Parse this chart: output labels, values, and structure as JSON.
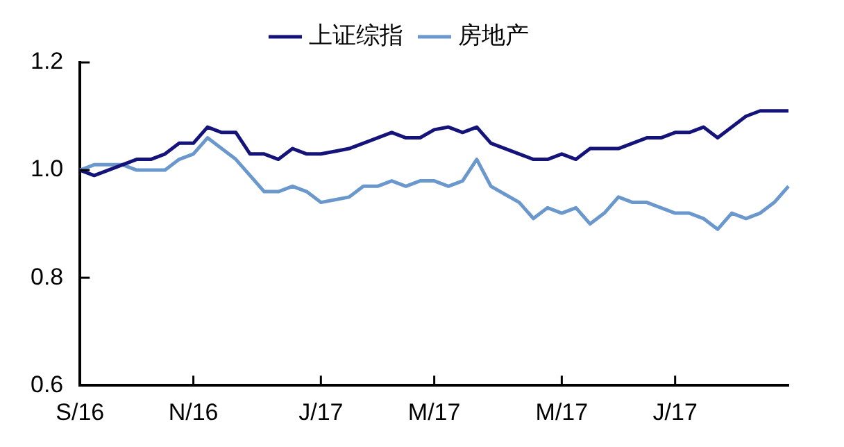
{
  "chart_data": {
    "type": "line",
    "categories": [
      "S/16",
      null,
      null,
      null,
      null,
      null,
      null,
      null,
      "N/16",
      null,
      null,
      null,
      null,
      null,
      null,
      null,
      null,
      "J/17",
      null,
      null,
      null,
      null,
      null,
      null,
      null,
      "M/17",
      null,
      null,
      null,
      null,
      null,
      null,
      null,
      null,
      "M/17",
      null,
      null,
      null,
      null,
      null,
      null,
      null,
      "J/17",
      null,
      null,
      null,
      null,
      null,
      null,
      null,
      null
    ],
    "series": [
      {
        "name": "上证综指",
        "color": "#14137a",
        "values": [
          1.0,
          0.99,
          1.0,
          1.01,
          1.02,
          1.02,
          1.03,
          1.05,
          1.05,
          1.08,
          1.07,
          1.07,
          1.03,
          1.03,
          1.02,
          1.04,
          1.03,
          1.03,
          1.035,
          1.04,
          1.05,
          1.06,
          1.07,
          1.06,
          1.06,
          1.075,
          1.08,
          1.07,
          1.08,
          1.05,
          1.04,
          1.03,
          1.02,
          1.02,
          1.03,
          1.02,
          1.04,
          1.04,
          1.04,
          1.05,
          1.06,
          1.06,
          1.07,
          1.07,
          1.08,
          1.06,
          1.08,
          1.1,
          1.11,
          1.11,
          1.11
        ]
      },
      {
        "name": "房地产",
        "color": "#6a98cc",
        "values": [
          1.0,
          1.01,
          1.01,
          1.01,
          1.0,
          1.0,
          1.0,
          1.02,
          1.03,
          1.06,
          1.04,
          1.02,
          0.99,
          0.96,
          0.96,
          0.97,
          0.96,
          0.94,
          0.945,
          0.95,
          0.97,
          0.97,
          0.98,
          0.97,
          0.98,
          0.98,
          0.97,
          0.98,
          1.02,
          0.97,
          0.955,
          0.94,
          0.91,
          0.93,
          0.92,
          0.93,
          0.9,
          0.92,
          0.95,
          0.94,
          0.94,
          0.93,
          0.92,
          0.92,
          0.91,
          0.89,
          0.92,
          0.91,
          0.92,
          0.94,
          0.97
        ]
      }
    ],
    "ylim": [
      0.6,
      1.2
    ],
    "yticks": [
      {
        "value": 0.6,
        "label": "0.6"
      },
      {
        "value": 0.8,
        "label": "0.8"
      },
      {
        "value": 1.0,
        "label": "1.0"
      },
      {
        "value": 1.2,
        "label": "1.2"
      }
    ],
    "grid": false,
    "legend": "top",
    "marker": "none",
    "line_style": "solid"
  }
}
